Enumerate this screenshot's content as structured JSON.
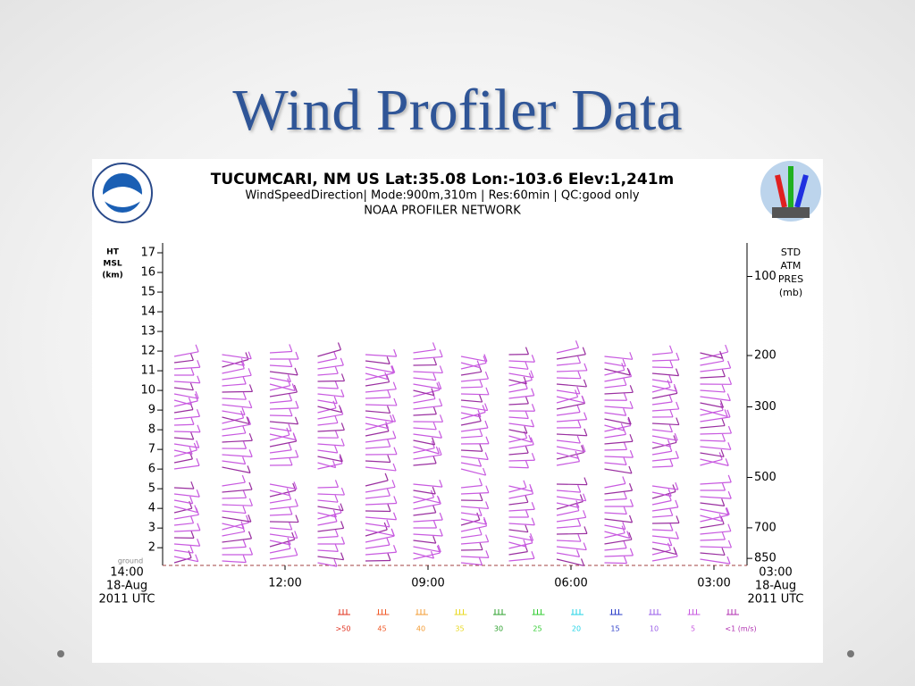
{
  "title": "Wind Profiler Data",
  "chart_data": {
    "type": "wind-barb",
    "title": "TUCUMCARI, NM US  Lat:35.08 Lon:-103.6 Elev:1,241m",
    "subtitle": "WindSpeedDirection| Mode:900m,310m | Res:60min |  QC:good only",
    "source": "NOAA PROFILER NETWORK",
    "y_label": [
      "HT",
      "MSL",
      "(km)"
    ],
    "ylim": [
      1.1,
      17.5
    ],
    "yticks": [
      2,
      3,
      4,
      5,
      6,
      7,
      8,
      9,
      10,
      11,
      12,
      13,
      14,
      15,
      16,
      17
    ],
    "y2_label": [
      "STD",
      "ATM",
      "PRES",
      "(mb)"
    ],
    "y2ticks": [
      100,
      200,
      300,
      500,
      700,
      850
    ],
    "ground_label": "ground",
    "xticks": [
      "12:00",
      "09:00",
      "06:00",
      "03:00"
    ],
    "start_label": [
      "14:00",
      "18-Aug",
      "2011 UTC"
    ],
    "end_label": [
      "03:00",
      "18-Aug",
      "2011 UTC"
    ],
    "legend": [
      {
        "name": ">50",
        "color": "#e0301e"
      },
      {
        "name": "45",
        "color": "#f05a28"
      },
      {
        "name": "40",
        "color": "#f39c34"
      },
      {
        "name": "35",
        "color": "#e8d820"
      },
      {
        "name": "30",
        "color": "#2ca02c"
      },
      {
        "name": "25",
        "color": "#33cc33"
      },
      {
        "name": "20",
        "color": "#22d3e6"
      },
      {
        "name": "15",
        "color": "#2a3cc8"
      },
      {
        "name": "10",
        "color": "#9a5ee8"
      },
      {
        "name": "5",
        "color": "#c85ae0"
      },
      {
        "name": "<1 (m/s)",
        "color": "#b02fb0"
      }
    ]
  }
}
